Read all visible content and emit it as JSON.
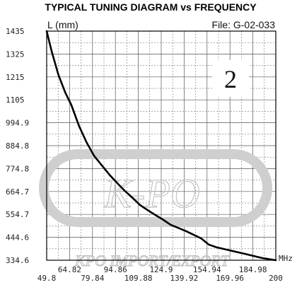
{
  "chart_data": {
    "type": "line",
    "title": "TYPICAL TUNING DIAGRAM vs FREQUENCY",
    "ylabel": "L (mm)",
    "xlabel": "MHz",
    "file_label": "File:  G-02-033",
    "badge": "2",
    "watermark": {
      "logo_text": "K-PO",
      "company_text": "KPO IMPORT/EXPORT"
    },
    "xlim": [
      49.8,
      200
    ],
    "ylim": [
      334.6,
      1435
    ],
    "x_ticks_top_row": [
      "64.82",
      "94.86",
      "124.9",
      "154.94",
      "184.98"
    ],
    "x_ticks_bottom_row": [
      "49.8",
      "79.84",
      "109.88",
      "139.92",
      "169.96",
      "200"
    ],
    "y_ticks": [
      "1435",
      "1325",
      "1215",
      "1105",
      "994.9",
      "884.8",
      "774.8",
      "664.7",
      "554.7",
      "444.6",
      "334.6"
    ],
    "grid": true,
    "series": [
      {
        "name": "L (mm)",
        "x": [
          49.8,
          53,
          57.5,
          62,
          66,
          71,
          76,
          81,
          86,
          91,
          96,
          101,
          106,
          111,
          116,
          121,
          126,
          131,
          141,
          151,
          156,
          161,
          171,
          181,
          191,
          200
        ],
        "y": [
          1435,
          1340,
          1225,
          1140,
          1080,
          980,
          900,
          835,
          790,
          745,
          705,
          668,
          635,
          600,
          575,
          552,
          530,
          505,
          475,
          440,
          410,
          397,
          380,
          363,
          345,
          334.6
        ]
      }
    ]
  }
}
